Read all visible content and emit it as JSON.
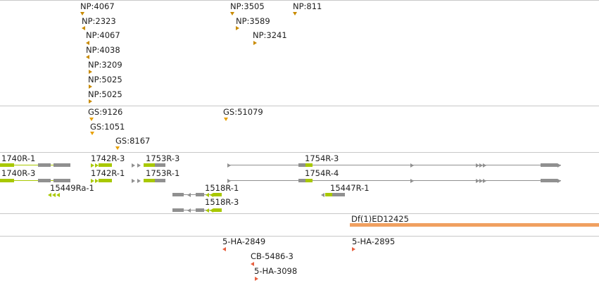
{
  "colors": {
    "insertion_orange": "#c88a00",
    "insertion_amber": "#e8a000",
    "gene_green": "#a8c800",
    "gene_grey": "#909090",
    "deficiency": "#f0a060",
    "red_insert": "#e86040",
    "separator": "#c8c8c8"
  },
  "tracks": {
    "np_insertions": [
      {
        "label": "NP:4067"
      },
      {
        "label": "NP:2323"
      },
      {
        "label": "NP:4067"
      },
      {
        "label": "NP:4038"
      },
      {
        "label": "NP:3209"
      },
      {
        "label": "NP:5025"
      },
      {
        "label": "NP:5025"
      },
      {
        "label": "NP:3505"
      },
      {
        "label": "NP:3589"
      },
      {
        "label": "NP:3241"
      },
      {
        "label": "NP:811"
      }
    ],
    "gs_insertions": [
      {
        "label": "GS:9126"
      },
      {
        "label": "GS:1051"
      },
      {
        "label": "GS:8167"
      },
      {
        "label": "GS:51079"
      }
    ],
    "transcripts": [
      {
        "label": "1740R-1"
      },
      {
        "label": "1740R-3"
      },
      {
        "label": "1742R-3"
      },
      {
        "label": "1742R-1"
      },
      {
        "label": "1753R-3"
      },
      {
        "label": "1753R-1"
      },
      {
        "label": "15449Ra-1"
      },
      {
        "label": "1518R-1"
      },
      {
        "label": "1518R-3"
      },
      {
        "label": "1754R-3"
      },
      {
        "label": "1754R-4"
      },
      {
        "label": "15447R-1"
      }
    ],
    "deficiency": {
      "label": "Df(1)ED12425"
    },
    "other_insertions": [
      {
        "label": "5-HA-2849"
      },
      {
        "label": "CB-5486-3"
      },
      {
        "label": "5-HA-3098"
      },
      {
        "label": "5-HA-2895"
      }
    ]
  }
}
